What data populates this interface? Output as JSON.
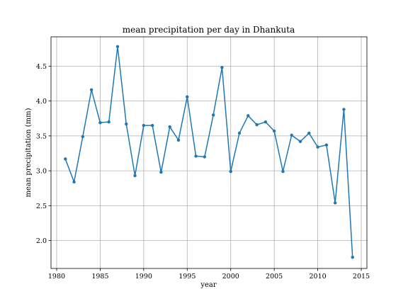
{
  "chart_data": {
    "type": "line",
    "title": "mean precipitation per day in Dhankuta",
    "xlabel": "year",
    "ylabel": "mean precipitation (mm)",
    "xlim": [
      1979.35,
      2015.65
    ],
    "ylim": [
      1.6,
      4.92
    ],
    "xticks": [
      1980,
      1985,
      1990,
      1995,
      2000,
      2005,
      2010,
      2015
    ],
    "yticks": [
      2.0,
      2.5,
      3.0,
      3.5,
      4.0,
      4.5
    ],
    "grid": true,
    "legend": "none",
    "color": "#1f77b4",
    "x": [
      1981,
      1982,
      1983,
      1984,
      1985,
      1986,
      1987,
      1988,
      1989,
      1990,
      1991,
      1992,
      1993,
      1994,
      1995,
      1996,
      1997,
      1998,
      1999,
      2000,
      2001,
      2002,
      2003,
      2004,
      2005,
      2006,
      2007,
      2008,
      2009,
      2010,
      2011,
      2012,
      2013,
      2014
    ],
    "y": [
      3.17,
      2.84,
      3.49,
      4.16,
      3.69,
      3.7,
      4.78,
      3.67,
      2.93,
      3.65,
      3.65,
      2.98,
      3.63,
      3.44,
      4.06,
      3.21,
      3.2,
      3.8,
      4.48,
      2.99,
      3.54,
      3.79,
      3.66,
      3.7,
      3.57,
      2.99,
      3.51,
      3.42,
      3.54,
      3.34,
      3.37,
      2.54,
      3.88,
      1.76
    ]
  }
}
